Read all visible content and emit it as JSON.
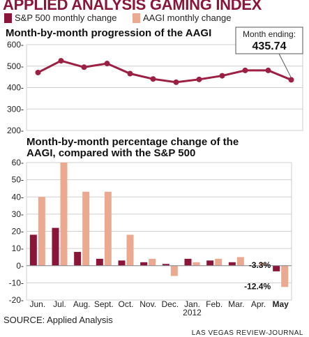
{
  "header": {
    "title": "APPLIED ANALYSIS GAMING INDEX",
    "legend": [
      {
        "label": "S&P 500 monthly change",
        "color": "#8a1538"
      },
      {
        "label": "AAGI monthly change",
        "color": "#eba98f"
      }
    ]
  },
  "colors": {
    "sp500": "#8a1538",
    "aagi": "#eba98f",
    "line": "#9b2043",
    "grid": "#cfcfcf",
    "callout_border": "#555555"
  },
  "callout": {
    "label": "Month ending:",
    "value": "435.74"
  },
  "chart_data": [
    {
      "type": "line",
      "title": "Month-by-month progression of the AAGI",
      "x": [
        "Jun.",
        "Jul.",
        "Aug.",
        "Sept.",
        "Oct.",
        "Nov.",
        "Dec.",
        "Jan.",
        "Feb.",
        "Mar.",
        "Apr.",
        "May"
      ],
      "series": [
        {
          "values": [
            470,
            525,
            495,
            512,
            465,
            440,
            425,
            438,
            455,
            480,
            480,
            436
          ]
        }
      ],
      "ylim": [
        200,
        600
      ],
      "yticks": [
        200,
        300,
        400,
        500,
        600
      ],
      "grid": true
    },
    {
      "type": "bar",
      "title": "Month-by-month percentage change of the AAGI, compared with the S&P 500",
      "categories": [
        "Jun.",
        "Jul.",
        "Aug.",
        "Sept.",
        "Oct.",
        "Nov.",
        "Dec.",
        "Jan.",
        "Feb.",
        "Mar.",
        "Apr.",
        "May"
      ],
      "category_sublabels": {
        "Jan.": "2012"
      },
      "highlight_category": "May",
      "series": [
        {
          "name": "S&P 500 monthly change",
          "values": [
            18,
            22,
            8,
            4,
            3,
            2,
            1,
            4,
            3,
            2,
            0,
            -3.3
          ]
        },
        {
          "name": "AAGI monthly change",
          "values": [
            40,
            60,
            43,
            43,
            18,
            4,
            -6,
            2,
            4,
            5,
            1.5,
            -12.4
          ]
        }
      ],
      "data_labels": [
        {
          "category": "May",
          "series": "S&P 500 monthly change",
          "text": "-3.3%"
        },
        {
          "category": "May",
          "series": "AAGI monthly change",
          "text": "-12.4%"
        }
      ],
      "ylim": [
        -20,
        60
      ],
      "yticks": [
        -20,
        -10,
        0,
        10,
        20,
        30,
        40,
        50,
        60
      ],
      "grid": true
    }
  ],
  "footer": {
    "source": "SOURCE: Applied Analysis",
    "credit": "LAS VEGAS REVIEW-JOURNAL"
  }
}
